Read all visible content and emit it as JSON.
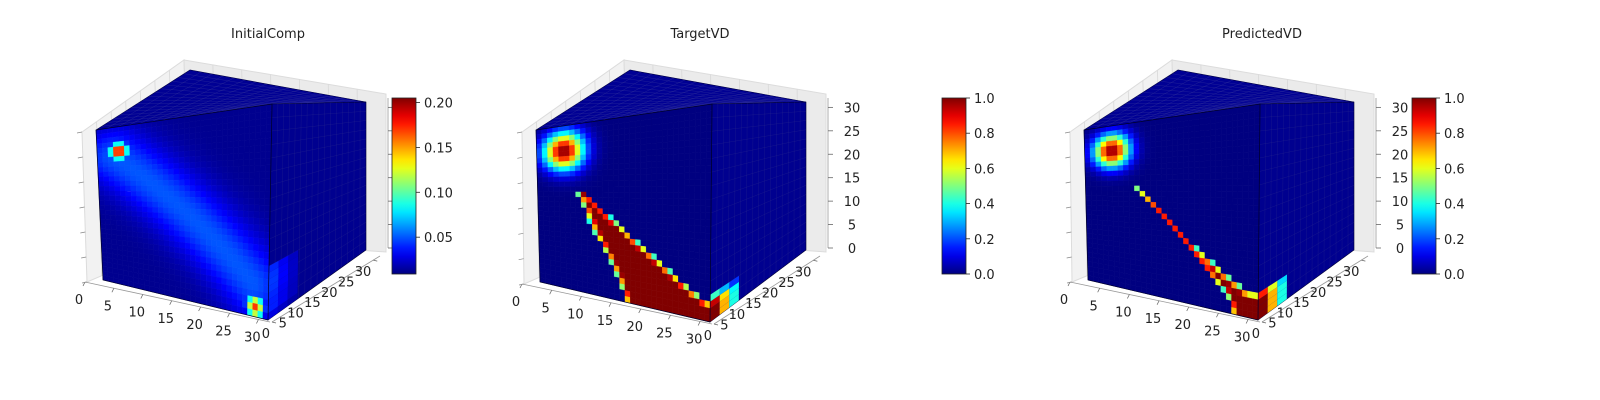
{
  "chart_data": [
    {
      "type": "voxel3d",
      "title": "InitialComp",
      "colormap": "jet",
      "axes": {
        "x": {
          "range": [
            0,
            32
          ],
          "ticks": [
            0,
            5,
            10,
            15,
            20,
            25,
            30
          ]
        },
        "y": {
          "range": [
            0,
            32
          ],
          "ticks": [
            0,
            5,
            10,
            15,
            20,
            25,
            30
          ]
        },
        "z": {
          "range": [
            0,
            32
          ],
          "ticks": [],
          "tick_labels_shown": false
        }
      },
      "colorbar": {
        "min": 0.009,
        "max": 0.205,
        "ticks": [
          0.05,
          0.1,
          0.15,
          0.2
        ],
        "tick_labels": [
          "0.05",
          "0.10",
          "0.15",
          "0.20"
        ]
      },
      "field": {
        "background": 0.012,
        "band": {
          "from": [
            3,
            26
          ],
          "to": [
            29,
            5
          ],
          "width": 4.2,
          "value": 0.05
        },
        "hotspots": [
          {
            "center": [
              4,
              27
            ],
            "radius": 1.2,
            "value": 0.2
          },
          {
            "center": [
              29.5,
              1.5
            ],
            "radius": 1.2,
            "value": 0.17
          }
        ]
      }
    },
    {
      "type": "voxel3d",
      "title": "TargetVD",
      "colormap": "jet",
      "axes": {
        "x": {
          "range": [
            0,
            32
          ],
          "ticks": [
            0,
            5,
            10,
            15,
            20,
            25,
            30
          ]
        },
        "y": {
          "range": [
            0,
            32
          ],
          "ticks": [
            0,
            5,
            10,
            15,
            20,
            25,
            30
          ]
        },
        "z": {
          "range": [
            0,
            32
          ],
          "ticks": [
            0,
            5,
            10,
            15,
            20,
            25,
            30
          ]
        }
      },
      "colorbar": {
        "min": 0.0,
        "max": 1.0,
        "ticks": [
          0.0,
          0.2,
          0.4,
          0.6,
          0.8,
          1.0
        ],
        "tick_labels": [
          "0.0",
          "0.2",
          "0.4",
          "0.6",
          "0.8",
          "1.0"
        ]
      },
      "field": {
        "background": 0.0,
        "region": {
          "left_edge": [
            [
              6,
              21
            ],
            [
              8,
              17
            ],
            [
              10,
              12
            ],
            [
              13,
              7
            ],
            [
              15,
              3
            ],
            [
              16,
              0
            ]
          ],
          "right_edge": [
            [
              9,
              19
            ],
            [
              13,
              15
            ],
            [
              18,
              11
            ],
            [
              24,
              7
            ],
            [
              29,
              4
            ],
            [
              32,
              3
            ]
          ],
          "value": 1.0,
          "edge_width": 1.3
        },
        "hotspots": [
          {
            "center": [
              5,
              27
            ],
            "radius": 2.5,
            "value": 1.0
          }
        ]
      }
    },
    {
      "type": "voxel3d",
      "title": "PredictedVD",
      "colormap": "jet",
      "axes": {
        "x": {
          "range": [
            0,
            32
          ],
          "ticks": [
            0,
            5,
            10,
            15,
            20,
            25,
            30
          ]
        },
        "y": {
          "range": [
            0,
            32
          ],
          "ticks": [
            0,
            5,
            10,
            15,
            20,
            25,
            30
          ]
        },
        "z": {
          "range": [
            0,
            32
          ],
          "ticks": [
            0,
            5,
            10,
            15,
            20,
            25,
            30
          ]
        }
      },
      "colorbar": {
        "min": 0.0,
        "max": 1.0,
        "ticks": [
          0.0,
          0.2,
          0.4,
          0.6,
          0.8,
          1.0
        ],
        "tick_labels": [
          "0.0",
          "0.2",
          "0.4",
          "0.6",
          "0.8",
          "1.0"
        ]
      },
      "field": {
        "background": 0.0,
        "region": {
          "left_edge": [
            [
              8,
              21
            ],
            [
              12,
              16
            ],
            [
              17,
              11
            ],
            [
              22,
              6
            ],
            [
              26,
              3
            ],
            [
              27,
              0
            ]
          ],
          "right_edge": [
            [
              10,
              20
            ],
            [
              15,
              15
            ],
            [
              20,
              10
            ],
            [
              26,
              6
            ],
            [
              30,
              4
            ],
            [
              32,
              4
            ]
          ],
          "value": 1.0,
          "edge_width": 1.3
        },
        "hotspots": [
          {
            "center": [
              5,
              27
            ],
            "radius": 2.2,
            "value": 1.0
          }
        ]
      }
    }
  ]
}
